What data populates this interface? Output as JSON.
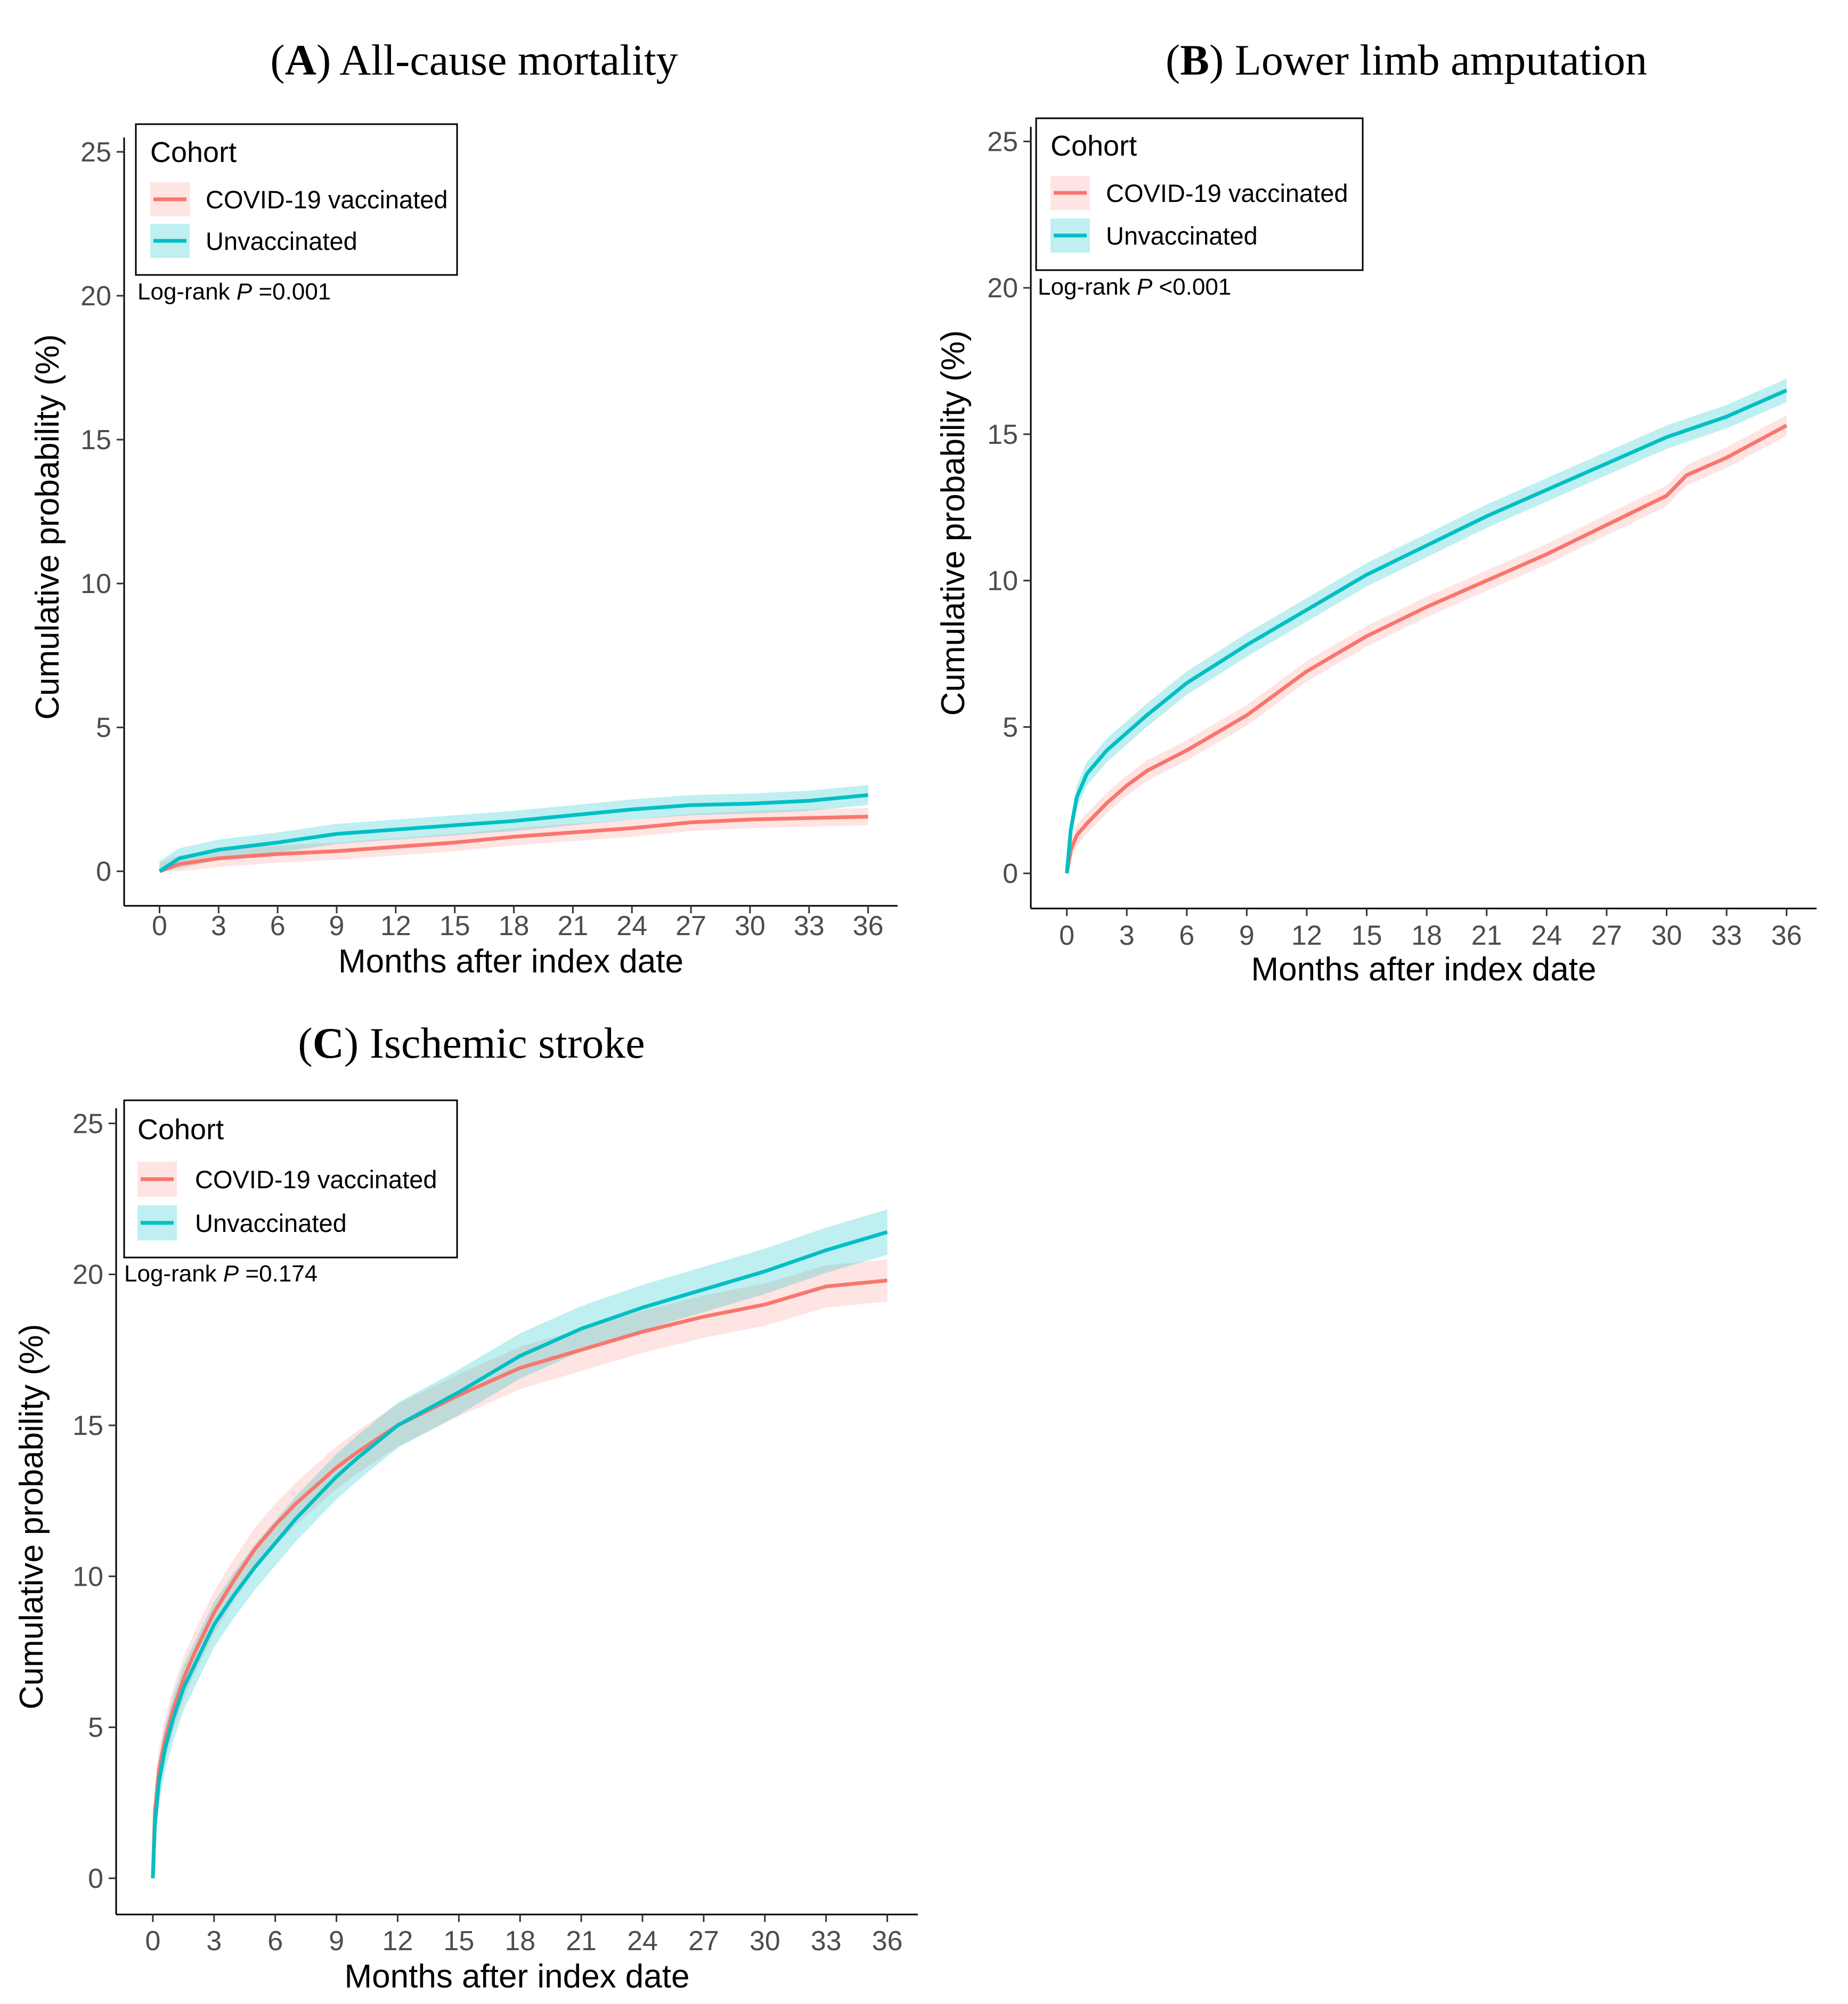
{
  "figure": {
    "colors": {
      "vaccinated": "#F8766D",
      "unvaccinated": "#00BFC4",
      "axis": "#000000",
      "tick_text": "#4d4d4d"
    }
  },
  "chart_data": [
    {
      "type": "line",
      "panel_letter": "A",
      "title": "All-cause mortality",
      "xlabel": "Months after index date",
      "ylabel": "Cumulative probability (%)",
      "xlim": [
        -1.8,
        37.5
      ],
      "ylim": [
        -1.2,
        25.5
      ],
      "xticks": [
        0,
        3,
        6,
        9,
        12,
        15,
        18,
        21,
        24,
        27,
        30,
        33,
        36
      ],
      "yticks": [
        0,
        5,
        10,
        15,
        20,
        25
      ],
      "legend": {
        "title": "Cohort",
        "entries": [
          "COVID-19 vaccinated",
          "Unvaccinated"
        ],
        "position": "top-left"
      },
      "annotation": {
        "prefix": "Log-rank ",
        "italic": "P",
        "suffix": " =0.001"
      },
      "series": [
        {
          "name": "COVID-19 vaccinated",
          "color": "#F8766D",
          "band": 0.3,
          "x": [
            0,
            1,
            3,
            6,
            9,
            12,
            15,
            18,
            21,
            24,
            27,
            30,
            33,
            36
          ],
          "values": [
            0,
            0.25,
            0.45,
            0.6,
            0.7,
            0.85,
            1.0,
            1.2,
            1.35,
            1.5,
            1.7,
            1.8,
            1.85,
            1.9
          ]
        },
        {
          "name": "Unvaccinated",
          "color": "#00BFC4",
          "band": 0.35,
          "x": [
            0,
            1,
            3,
            6,
            9,
            12,
            15,
            18,
            21,
            24,
            27,
            30,
            33,
            36
          ],
          "values": [
            0,
            0.45,
            0.75,
            1.0,
            1.3,
            1.45,
            1.6,
            1.75,
            1.95,
            2.15,
            2.3,
            2.35,
            2.45,
            2.65
          ]
        }
      ]
    },
    {
      "type": "line",
      "panel_letter": "B",
      "title": "Lower limb amputation",
      "xlabel": "Months after index date",
      "ylabel": "Cumulative probability (%)",
      "xlim": [
        -1.8,
        37.5
      ],
      "ylim": [
        -1.2,
        25.5
      ],
      "xticks": [
        0,
        3,
        6,
        9,
        12,
        15,
        18,
        21,
        24,
        27,
        30,
        33,
        36
      ],
      "yticks": [
        0,
        5,
        10,
        15,
        20,
        25
      ],
      "legend": {
        "title": "Cohort",
        "entries": [
          "COVID-19 vaccinated",
          "Unvaccinated"
        ],
        "position": "top-left"
      },
      "annotation": {
        "prefix": "Log-rank ",
        "italic": "P",
        "suffix": " <0.001"
      },
      "series": [
        {
          "name": "COVID-19 vaccinated",
          "color": "#F8766D",
          "band": 0.35,
          "x": [
            0,
            0.2,
            0.5,
            1,
            2,
            3,
            4,
            6,
            9,
            12,
            15,
            18,
            21,
            24,
            27,
            30,
            31,
            33,
            36
          ],
          "values": [
            0,
            0.8,
            1.3,
            1.7,
            2.4,
            3.0,
            3.5,
            4.2,
            5.4,
            6.9,
            8.1,
            9.1,
            10.0,
            10.9,
            11.9,
            12.9,
            13.6,
            14.2,
            15.3
          ]
        },
        {
          "name": "Unvaccinated",
          "color": "#00BFC4",
          "band": 0.4,
          "x": [
            0,
            0.2,
            0.5,
            1,
            2,
            3,
            4,
            6,
            9,
            12,
            15,
            18,
            21,
            24,
            27,
            30,
            33,
            36
          ],
          "values": [
            0,
            1.5,
            2.6,
            3.4,
            4.2,
            4.8,
            5.4,
            6.5,
            7.8,
            9.0,
            10.2,
            11.2,
            12.2,
            13.1,
            14.0,
            14.9,
            15.6,
            16.5
          ]
        }
      ]
    },
    {
      "type": "line",
      "panel_letter": "C",
      "title": "Ischemic stroke",
      "xlabel": "Months after index date",
      "ylabel": "Cumulative probability (%)",
      "xlim": [
        -1.8,
        37.5
      ],
      "ylim": [
        -1.2,
        25.5
      ],
      "xticks": [
        0,
        3,
        6,
        9,
        12,
        15,
        18,
        21,
        24,
        27,
        30,
        33,
        36
      ],
      "yticks": [
        0,
        5,
        10,
        15,
        20,
        25
      ],
      "legend": {
        "title": "Cohort",
        "entries": [
          "COVID-19 vaccinated",
          "Unvaccinated"
        ],
        "position": "top-left"
      },
      "annotation": {
        "prefix": "Log-rank ",
        "italic": "P",
        "suffix": " =0.174"
      },
      "series": [
        {
          "name": "COVID-19 vaccinated",
          "color": "#F8766D",
          "band": 0.7,
          "x": [
            0,
            0.1,
            0.3,
            0.6,
            1,
            1.5,
            2,
            3,
            4,
            5,
            6,
            7,
            8,
            9,
            10,
            12,
            15,
            18,
            21,
            24,
            27,
            30,
            33,
            36
          ],
          "values": [
            0,
            2.2,
            3.6,
            4.6,
            5.6,
            6.6,
            7.4,
            8.8,
            9.9,
            10.9,
            11.7,
            12.4,
            13.0,
            13.6,
            14.1,
            15.0,
            16.0,
            16.9,
            17.5,
            18.1,
            18.6,
            19.0,
            19.6,
            19.8
          ]
        },
        {
          "name": "Unvaccinated",
          "color": "#00BFC4",
          "band": 0.75,
          "x": [
            0,
            0.1,
            0.3,
            0.6,
            1,
            1.5,
            2,
            3,
            4,
            5,
            6,
            7,
            8,
            9,
            10,
            12,
            15,
            18,
            21,
            24,
            27,
            30,
            33,
            36
          ],
          "values": [
            0,
            1.8,
            3.2,
            4.3,
            5.3,
            6.3,
            7.0,
            8.4,
            9.4,
            10.3,
            11.1,
            11.9,
            12.6,
            13.3,
            13.9,
            15.0,
            16.1,
            17.3,
            18.2,
            18.9,
            19.5,
            20.1,
            20.8,
            21.4
          ]
        }
      ]
    }
  ]
}
